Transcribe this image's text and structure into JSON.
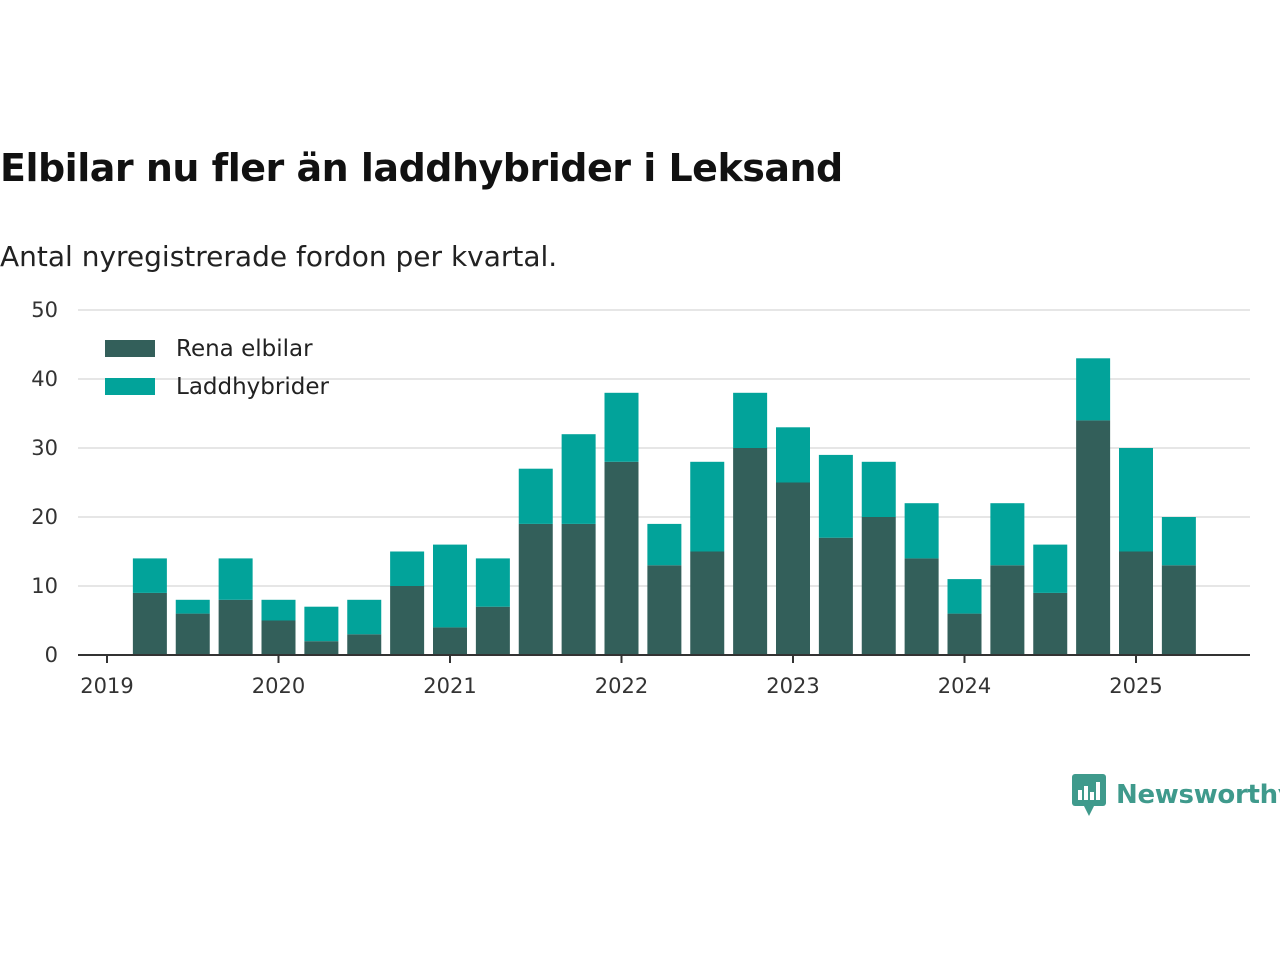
{
  "header": {
    "title": "Elbilar nu fler än laddhybrider i Leksand",
    "subtitle": "Antal nyregistrerade fordon per kvartal."
  },
  "brand": {
    "name": "Newsworthy",
    "color": "#3f9a8c",
    "icon": "newsworthy-logo-icon"
  },
  "chart_data": {
    "type": "bar",
    "stacked": true,
    "categories": [
      "2019 Q2",
      "2019 Q3",
      "2019 Q4",
      "2020 Q1",
      "2020 Q2",
      "2020 Q3",
      "2020 Q4",
      "2021 Q1",
      "2021 Q2",
      "2021 Q3",
      "2021 Q4",
      "2022 Q1",
      "2022 Q2",
      "2022 Q3",
      "2022 Q4",
      "2023 Q1",
      "2023 Q2",
      "2023 Q3",
      "2023 Q4",
      "2024 Q1",
      "2024 Q2",
      "2024 Q3",
      "2024 Q4",
      "2025 Q1",
      "2025 Q2"
    ],
    "series": [
      {
        "name": "Rena elbilar",
        "color": "#335f5a",
        "values": [
          9,
          6,
          8,
          5,
          2,
          3,
          10,
          4,
          7,
          19,
          19,
          28,
          13,
          15,
          30,
          25,
          17,
          20,
          14,
          6,
          13,
          9,
          34,
          15,
          13
        ]
      },
      {
        "name": "Laddhybrider",
        "color": "#02a39a",
        "values": [
          5,
          2,
          6,
          3,
          5,
          5,
          5,
          12,
          7,
          8,
          13,
          10,
          6,
          13,
          8,
          8,
          12,
          8,
          8,
          5,
          9,
          7,
          9,
          15,
          7
        ]
      }
    ],
    "xticks": [
      "2019",
      "2020",
      "2021",
      "2022",
      "2023",
      "2024",
      "2025"
    ],
    "yticks": [
      0,
      10,
      20,
      30,
      40,
      50
    ],
    "ylim": [
      0,
      50
    ],
    "xlabel": "",
    "ylabel": "",
    "grid": true,
    "legend": "top-left"
  }
}
